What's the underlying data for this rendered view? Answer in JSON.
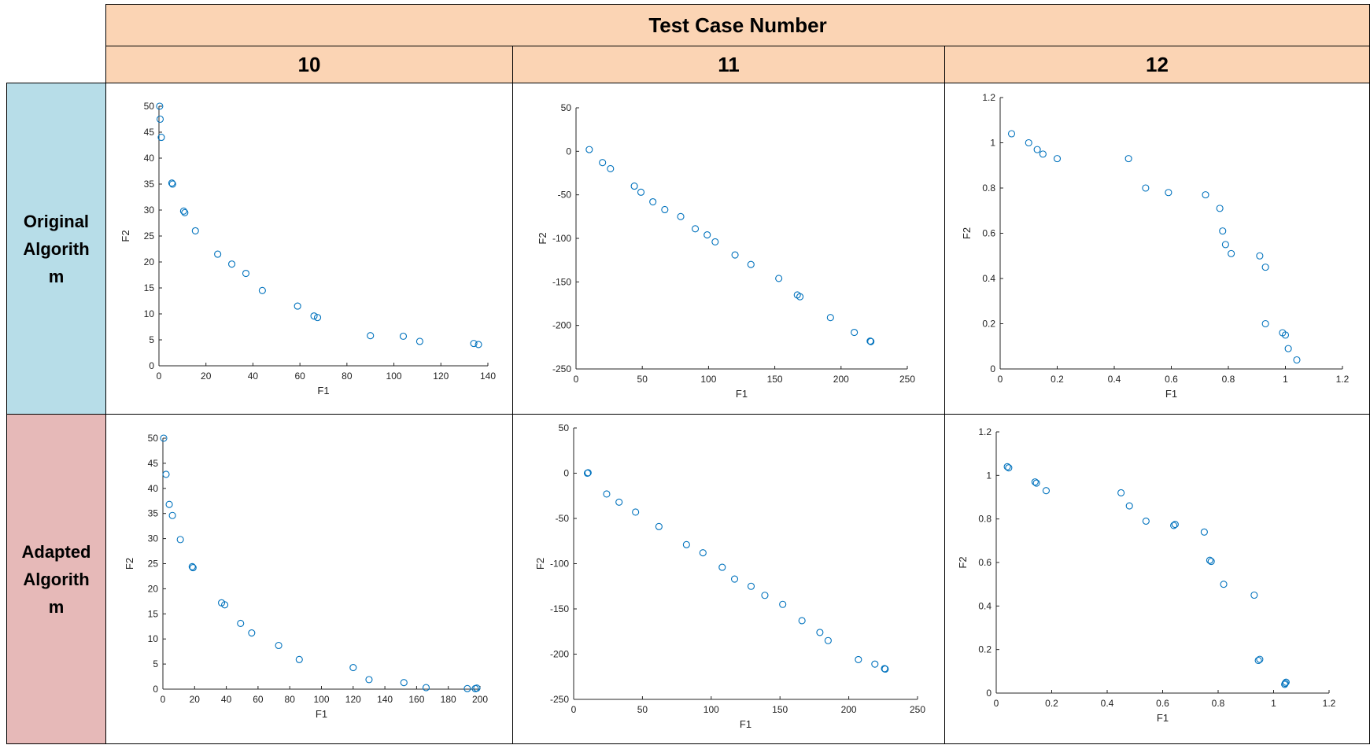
{
  "header": {
    "title": "Test Case Number"
  },
  "columns": [
    "10",
    "11",
    "12"
  ],
  "rows": [
    {
      "label": "Original Algorithm",
      "color": "#b7dde8"
    },
    {
      "label": "Adapted Algorithm",
      "color": "#e6b9b8"
    }
  ],
  "point_color": "#0072bd",
  "chart_data": [
    {
      "type": "scatter",
      "row": "Original Algorithm",
      "test_case": "10",
      "xlabel": "F1",
      "ylabel": "F2",
      "xlim": [
        0,
        140
      ],
      "ylim": [
        0,
        50
      ],
      "xticks": [
        0,
        20,
        40,
        60,
        80,
        100,
        120,
        140
      ],
      "yticks": [
        0,
        5,
        10,
        15,
        20,
        25,
        30,
        35,
        40,
        45,
        50
      ],
      "x": [
        0.3,
        0.5,
        1.0,
        5.5,
        5.8,
        10.5,
        11.0,
        15.5,
        25,
        31,
        37,
        44,
        59,
        66,
        67.5,
        90,
        104,
        111,
        134,
        136
      ],
      "y": [
        50.0,
        47.5,
        44.0,
        35.2,
        35.0,
        29.8,
        29.5,
        26.0,
        21.5,
        19.6,
        17.8,
        14.5,
        11.5,
        9.6,
        9.3,
        5.8,
        5.7,
        4.7,
        4.3,
        4.1
      ]
    },
    {
      "type": "scatter",
      "row": "Original Algorithm",
      "test_case": "11",
      "xlabel": "F1",
      "ylabel": "F2",
      "xlim": [
        0,
        250
      ],
      "ylim": [
        -250,
        50
      ],
      "xticks": [
        0,
        50,
        100,
        150,
        200,
        250
      ],
      "yticks": [
        -250,
        -200,
        -150,
        -100,
        -50,
        0,
        50
      ],
      "x": [
        10,
        20,
        26,
        44,
        49,
        58,
        67,
        79,
        90,
        99,
        105,
        120,
        132,
        153,
        167,
        169,
        192,
        210,
        222,
        222.5
      ],
      "y": [
        2,
        -13,
        -20,
        -40,
        -47,
        -58,
        -67,
        -75,
        -89,
        -96,
        -104,
        -119,
        -130,
        -146,
        -165,
        -167,
        -191,
        -208,
        -218,
        -218.5
      ]
    },
    {
      "type": "scatter",
      "row": "Original Algorithm",
      "test_case": "12",
      "xlabel": "F1",
      "ylabel": "F2",
      "xlim": [
        0,
        1.2
      ],
      "ylim": [
        0,
        1.2
      ],
      "xticks": [
        0,
        0.2,
        0.4,
        0.6,
        0.8,
        1,
        1.2
      ],
      "yticks": [
        0,
        0.2,
        0.4,
        0.6,
        0.8,
        1,
        1.2
      ],
      "x": [
        0.04,
        0.1,
        0.13,
        0.15,
        0.2,
        0.45,
        0.51,
        0.59,
        0.72,
        0.77,
        0.78,
        0.79,
        0.81,
        0.91,
        0.93,
        0.93,
        0.99,
        1.0,
        1.01,
        1.04
      ],
      "y": [
        1.04,
        1.0,
        0.97,
        0.95,
        0.93,
        0.93,
        0.8,
        0.78,
        0.77,
        0.71,
        0.61,
        0.55,
        0.51,
        0.5,
        0.45,
        0.2,
        0.16,
        0.15,
        0.09,
        0.04
      ]
    },
    {
      "type": "scatter",
      "row": "Adapted Algorithm",
      "test_case": "10",
      "xlabel": "F1",
      "ylabel": "F2",
      "xlim": [
        0,
        200
      ],
      "ylim": [
        0,
        50
      ],
      "xticks": [
        0,
        20,
        40,
        60,
        80,
        100,
        120,
        140,
        160,
        180,
        200
      ],
      "yticks": [
        0,
        5,
        10,
        15,
        20,
        25,
        30,
        35,
        40,
        45,
        50
      ],
      "x": [
        0.5,
        2,
        4,
        6,
        11,
        18.5,
        19,
        37,
        39,
        49,
        56,
        73,
        86,
        120,
        130,
        152,
        166,
        192,
        197,
        198
      ],
      "y": [
        50.0,
        42.8,
        36.8,
        34.6,
        29.8,
        24.4,
        24.2,
        17.2,
        16.8,
        13.1,
        11.2,
        8.7,
        5.9,
        4.3,
        1.9,
        1.3,
        0.3,
        0.1,
        0.1,
        0.2
      ]
    },
    {
      "type": "scatter",
      "row": "Adapted Algorithm",
      "test_case": "11",
      "xlabel": "F1",
      "ylabel": "F2",
      "xlim": [
        0,
        250
      ],
      "ylim": [
        -250,
        50
      ],
      "xticks": [
        0,
        50,
        100,
        150,
        200,
        250
      ],
      "yticks": [
        -250,
        -200,
        -150,
        -100,
        -50,
        0,
        50
      ],
      "x": [
        10,
        10.5,
        24,
        33,
        45,
        62,
        82,
        94,
        108,
        117,
        129,
        139,
        152,
        166,
        179,
        185,
        207,
        219,
        226,
        226.5
      ],
      "y": [
        0,
        0.5,
        -23,
        -32,
        -43,
        -59,
        -79,
        -88,
        -104,
        -117,
        -125,
        -135,
        -145,
        -163,
        -176,
        -185,
        -206,
        -211,
        -216,
        -216.5
      ]
    },
    {
      "type": "scatter",
      "row": "Adapted Algorithm",
      "test_case": "12",
      "xlabel": "F1",
      "ylabel": "F2",
      "xlim": [
        0,
        1.2
      ],
      "ylim": [
        0,
        1.2
      ],
      "xticks": [
        0,
        0.2,
        0.4,
        0.6,
        0.8,
        1,
        1.2
      ],
      "yticks": [
        0,
        0.2,
        0.4,
        0.6,
        0.8,
        1,
        1.2
      ],
      "x": [
        0.04,
        0.045,
        0.14,
        0.145,
        0.18,
        0.45,
        0.48,
        0.54,
        0.64,
        0.645,
        0.75,
        0.77,
        0.775,
        0.82,
        0.93,
        0.945,
        0.95,
        1.04,
        1.042,
        1.045
      ],
      "y": [
        1.04,
        1.035,
        0.97,
        0.965,
        0.93,
        0.92,
        0.86,
        0.79,
        0.77,
        0.775,
        0.74,
        0.61,
        0.605,
        0.5,
        0.45,
        0.15,
        0.155,
        0.04,
        0.045,
        0.05
      ]
    }
  ]
}
